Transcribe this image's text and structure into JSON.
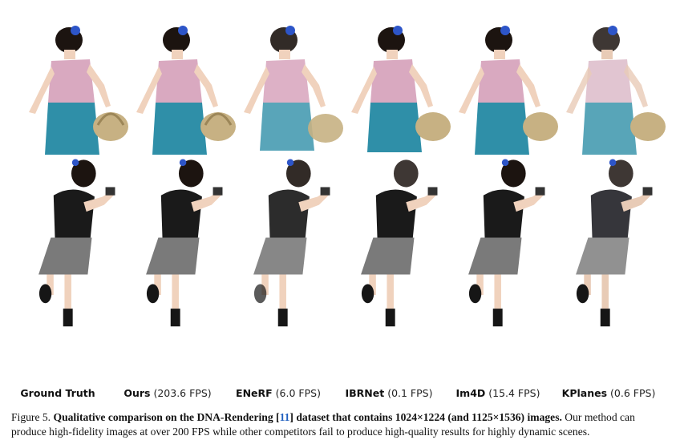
{
  "methods": [
    {
      "name": "Ground Truth",
      "fps": ""
    },
    {
      "name": "Ours",
      "fps": "(203.6 FPS)"
    },
    {
      "name": "ENeRF",
      "fps": "(6.0 FPS)"
    },
    {
      "name": "IBRNet",
      "fps": "(0.1 FPS)"
    },
    {
      "name": "Im4D",
      "fps": "(15.4 FPS)"
    },
    {
      "name": "KPlanes",
      "fps": "(0.6 FPS)"
    }
  ],
  "caption": {
    "prefix": "Figure 5.",
    "bold_a": "Qualitative comparison on the DNA-Rendering [",
    "ref": "11",
    "bold_b": "] dataset that contains 1024×1224 (and 1125×1536) images.",
    "rest": "Our method can produce high-fidelity images at over 200 FPS while other competitors fail to produce high-quality results for highly dynamic scenes."
  },
  "colors": {
    "dress": "#2f8fa8",
    "top_pink": "#d9a9c0",
    "shirt": "#1a1a1a",
    "skirt": "#7a7a7a",
    "skin": "#f0d2bd",
    "hair": "#1c1410",
    "flower": "#2d55c8",
    "basket": "#c7b183",
    "ref_link": "#1f5fbf"
  }
}
